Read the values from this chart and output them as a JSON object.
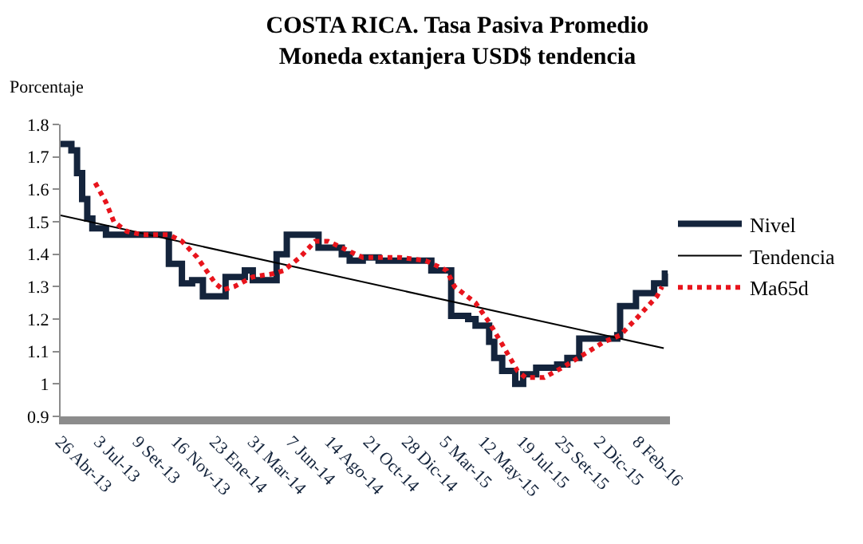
{
  "chart_data": {
    "type": "line",
    "title": "COSTA RICA. Tasa Pasiva Promedio",
    "subtitle": "Moneda extanjera USD$ tendencia",
    "ylabel": "Porcentaje",
    "xlim": [
      "2013-04-26",
      "2016-04-05"
    ],
    "xticks": [
      {
        "value": "2013-04-26",
        "label": "26 Abr-13"
      },
      {
        "value": "2013-07-03",
        "label": "3 Jul-13"
      },
      {
        "value": "2013-09-09",
        "label": "9 Set-13"
      },
      {
        "value": "2013-11-16",
        "label": "16 Nov-13"
      },
      {
        "value": "2014-01-23",
        "label": "23 Ene-14"
      },
      {
        "value": "2014-03-31",
        "label": "31 Mar-14"
      },
      {
        "value": "2014-06-07",
        "label": "7 Jun-14"
      },
      {
        "value": "2014-08-14",
        "label": "14 Ago-14"
      },
      {
        "value": "2014-10-21",
        "label": "21 Oct-14"
      },
      {
        "value": "2014-12-28",
        "label": "28 Dic-14"
      },
      {
        "value": "2015-03-05",
        "label": "5 Mar-15"
      },
      {
        "value": "2015-05-12",
        "label": "12 May-15"
      },
      {
        "value": "2015-07-19",
        "label": "19 Jul-15"
      },
      {
        "value": "2015-09-25",
        "label": "25 Set-15"
      },
      {
        "value": "2015-12-02",
        "label": "2 Dic-15"
      },
      {
        "value": "2016-02-08",
        "label": "8 Feb-16"
      }
    ],
    "ylim": [
      0.9,
      1.8
    ],
    "yticks": [
      0.9,
      1,
      1.1,
      1.2,
      1.3,
      1.4,
      1.5,
      1.6,
      1.7,
      1.8
    ],
    "grid": false,
    "legend": "right",
    "marker": "none",
    "series": [
      {
        "name": "Nivel",
        "type": "step",
        "color": "#14243c",
        "line_style": "solid",
        "x": [
          "2013-04-26",
          "2013-05-15",
          "2013-05-25",
          "2013-06-03",
          "2013-06-12",
          "2013-06-21",
          "2013-07-15",
          "2013-11-03",
          "2013-11-26",
          "2013-12-14",
          "2014-01-02",
          "2014-02-11",
          "2014-03-17",
          "2014-03-31",
          "2014-05-12",
          "2014-05-30",
          "2014-07-25",
          "2014-09-04",
          "2014-09-18",
          "2014-10-11",
          "2014-11-08",
          "2015-01-21",
          "2015-02-09",
          "2015-03-16",
          "2015-04-15",
          "2015-04-28",
          "2015-05-22",
          "2015-05-31",
          "2015-06-14",
          "2015-07-07",
          "2015-07-21",
          "2015-08-13",
          "2015-09-19",
          "2015-10-07",
          "2015-10-28",
          "2015-11-14",
          "2016-01-03",
          "2016-01-08",
          "2016-02-05",
          "2016-03-08",
          "2016-03-27",
          "2016-04-01"
        ],
        "values": [
          1.74,
          1.72,
          1.65,
          1.57,
          1.51,
          1.48,
          1.46,
          1.37,
          1.31,
          1.32,
          1.27,
          1.33,
          1.35,
          1.32,
          1.4,
          1.46,
          1.42,
          1.4,
          1.38,
          1.39,
          1.38,
          1.38,
          1.35,
          1.21,
          1.2,
          1.18,
          1.13,
          1.08,
          1.04,
          1.0,
          1.03,
          1.05,
          1.06,
          1.08,
          1.14,
          1.14,
          1.15,
          1.24,
          1.28,
          1.31,
          1.34,
          1.34
        ]
      },
      {
        "name": "Tendencia",
        "color": "#000000",
        "line_style": "solid",
        "x": [
          "2013-04-26",
          "2016-03-25"
        ],
        "values": [
          1.52,
          1.11
        ]
      },
      {
        "name": "Ma65d",
        "color": "#e8141c",
        "line_style": "dotted",
        "x": [
          "2013-06-26",
          "2013-07-15",
          "2013-07-29",
          "2013-08-21",
          "2013-09-17",
          "2013-11-03",
          "2013-11-26",
          "2013-12-23",
          "2014-01-24",
          "2014-02-07",
          "2014-02-26",
          "2014-03-31",
          "2014-05-07",
          "2014-05-25",
          "2014-06-22",
          "2014-07-19",
          "2014-08-11",
          "2014-09-04",
          "2014-10-11",
          "2014-12-15",
          "2015-01-30",
          "2015-03-08",
          "2015-03-22",
          "2015-04-28",
          "2015-05-22",
          "2015-06-18",
          "2015-07-11",
          "2015-07-25",
          "2015-08-27",
          "2015-09-28",
          "2015-11-04",
          "2015-12-11",
          "2016-01-08",
          "2016-02-05",
          "2016-03-13",
          "2016-03-22"
        ],
        "values": [
          1.62,
          1.56,
          1.5,
          1.47,
          1.46,
          1.46,
          1.44,
          1.39,
          1.31,
          1.29,
          1.3,
          1.33,
          1.34,
          1.35,
          1.39,
          1.44,
          1.44,
          1.42,
          1.39,
          1.39,
          1.38,
          1.35,
          1.3,
          1.25,
          1.19,
          1.11,
          1.04,
          1.02,
          1.02,
          1.05,
          1.09,
          1.13,
          1.15,
          1.2,
          1.27,
          1.3
        ]
      }
    ]
  }
}
